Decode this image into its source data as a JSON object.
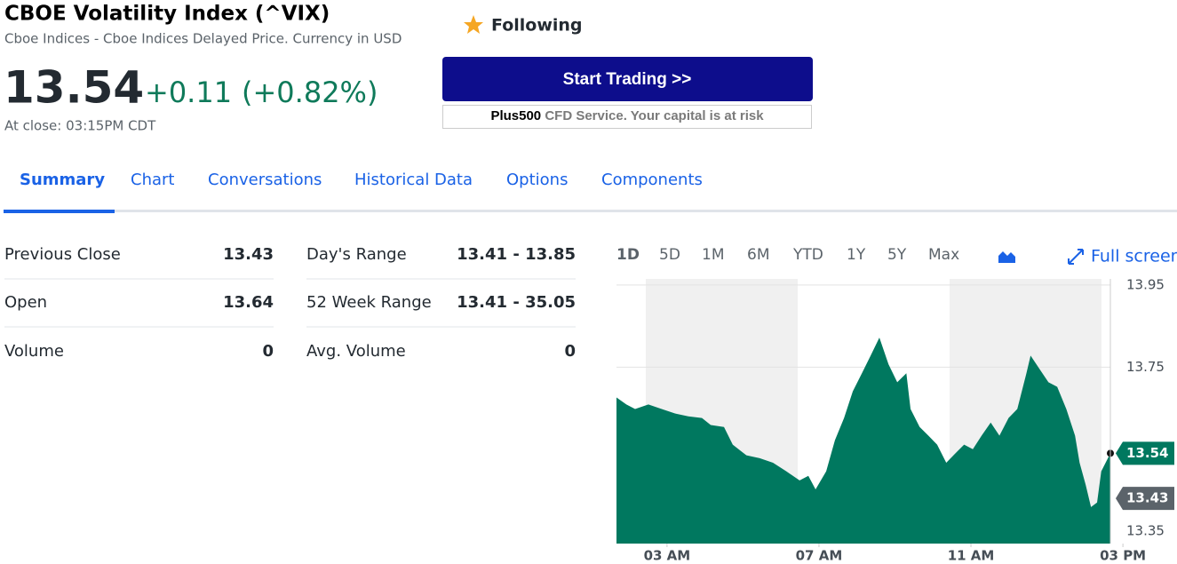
{
  "header": {
    "title": "CBOE Volatility Index (^VIX)",
    "subtitle": "Cboe Indices - Cboe Indices Delayed Price. Currency in USD",
    "price": "13.54",
    "change": "+0.11",
    "change_pct": "(+0.82%)",
    "close_time": "At close: 03:15PM CDT",
    "follow": "Following"
  },
  "trade": {
    "button": "Start Trading >>",
    "brand": "Plus500",
    "disclaimer": "CFD Service. Your capital is at risk"
  },
  "tabs": [
    "Summary",
    "Chart",
    "Conversations",
    "Historical Data",
    "Options",
    "Components"
  ],
  "stats": [
    [
      {
        "label": "Previous Close",
        "value": "13.43"
      },
      {
        "label": "Open",
        "value": "13.64"
      },
      {
        "label": "Volume",
        "value": "0"
      }
    ],
    [
      {
        "label": "Day's Range",
        "value": "13.41 - 13.85"
      },
      {
        "label": "52 Week Range",
        "value": "13.41 - 35.05"
      },
      {
        "label": "Avg. Volume",
        "value": "0"
      }
    ]
  ],
  "ranges": [
    "1D",
    "5D",
    "1M",
    "6M",
    "YTD",
    "1Y",
    "5Y",
    "Max"
  ],
  "full_screen": "Full screen",
  "chart_data": {
    "type": "area",
    "color": "#00785f",
    "x": [
      1.67,
      1.93,
      2.16,
      2.51,
      2.86,
      3.21,
      3.56,
      3.92,
      4.15,
      4.5,
      4.73,
      5.09,
      5.44,
      5.79,
      6.14,
      6.49,
      6.72,
      6.91,
      7.19,
      7.42,
      7.66,
      7.89,
      8.13,
      8.36,
      8.59,
      8.83,
      9.06,
      9.3,
      9.41,
      9.65,
      9.88,
      10.11,
      10.35,
      10.58,
      10.82,
      11.05,
      11.28,
      11.52,
      11.75,
      11.99,
      12.22,
      12.46,
      12.57,
      12.8,
      13.04,
      13.27,
      13.51,
      13.74,
      13.86,
      14.02,
      14.16,
      14.32,
      14.43,
      14.67
    ],
    "values": [
      13.676,
      13.659,
      13.648,
      13.659,
      13.648,
      13.637,
      13.63,
      13.626,
      13.609,
      13.604,
      13.561,
      13.535,
      13.528,
      13.517,
      13.496,
      13.474,
      13.485,
      13.452,
      13.496,
      13.572,
      13.626,
      13.691,
      13.735,
      13.778,
      13.822,
      13.757,
      13.713,
      13.735,
      13.648,
      13.604,
      13.583,
      13.561,
      13.517,
      13.539,
      13.561,
      13.55,
      13.583,
      13.615,
      13.583,
      13.626,
      13.648,
      13.735,
      13.778,
      13.746,
      13.713,
      13.702,
      13.648,
      13.583,
      13.517,
      13.463,
      13.409,
      13.42,
      13.496,
      13.54
    ],
    "xlim": [
      1.67,
      14.67
    ],
    "xticks": [
      {
        "value": 3,
        "label": "03 AM"
      },
      {
        "value": 7,
        "label": "07 AM"
      },
      {
        "value": 11,
        "label": "11 AM"
      },
      {
        "value": 15,
        "label": "03 PM"
      }
    ],
    "ylim": [
      13.32,
      13.965
    ],
    "yticks": [
      13.35,
      13.75,
      13.95
    ],
    "grid": true,
    "price_tags": [
      {
        "value": 13.54,
        "color": "#00785f"
      },
      {
        "value": 13.43,
        "color": "#5b636a"
      }
    ]
  }
}
